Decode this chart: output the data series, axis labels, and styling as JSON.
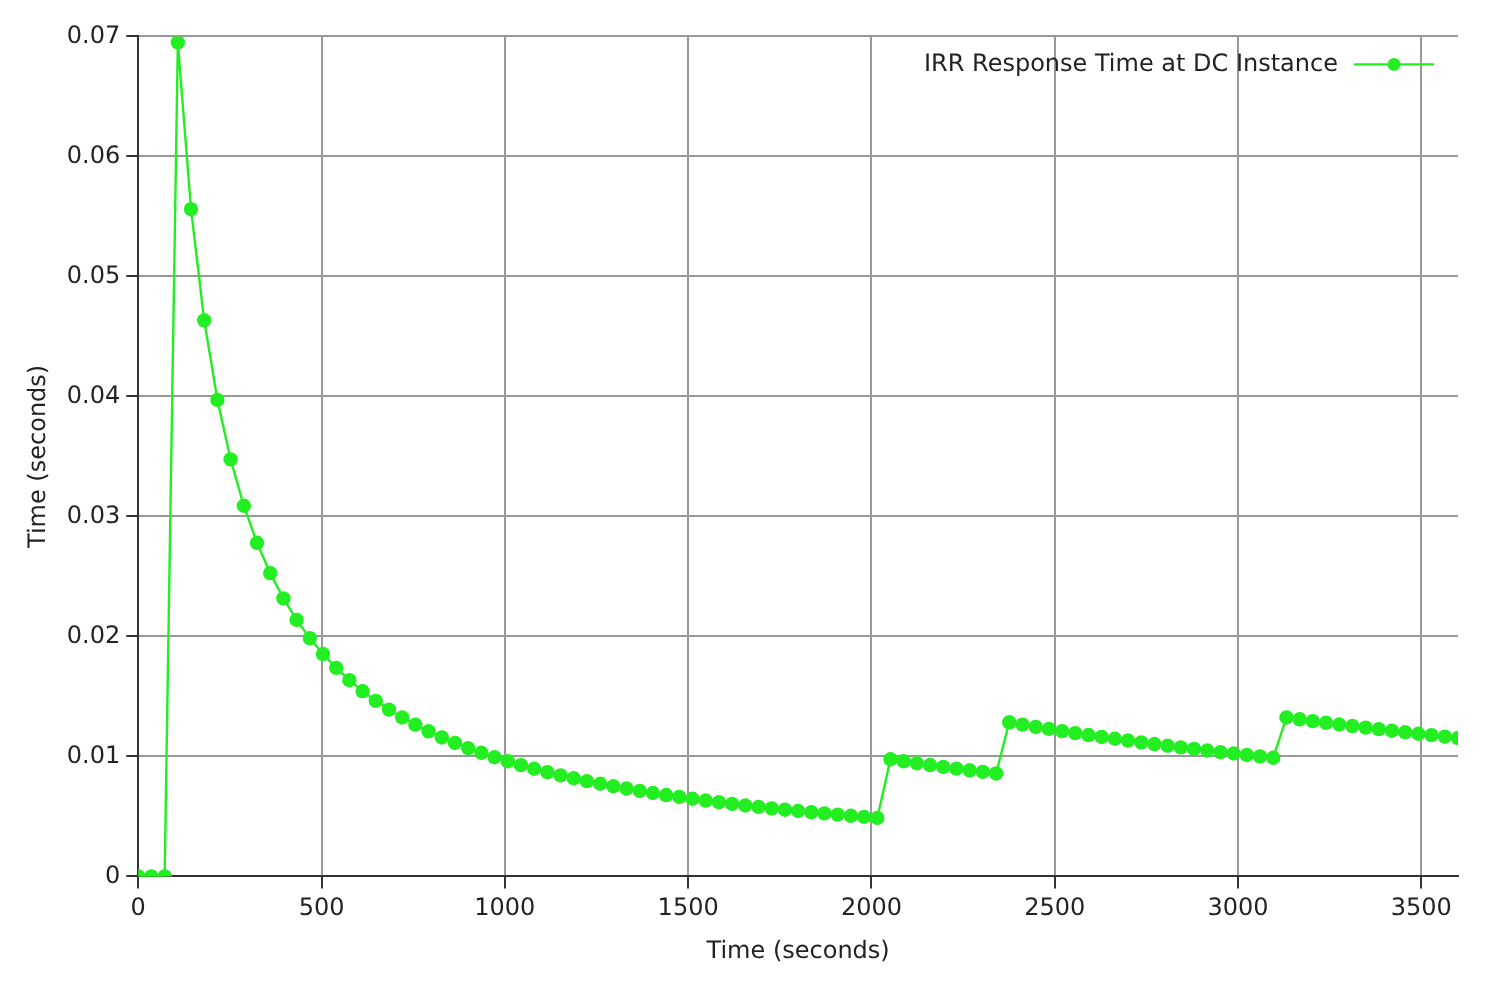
{
  "chart_data": {
    "type": "line",
    "xlabel": "Time (seconds)",
    "ylabel": "Time (seconds)",
    "x": [
      0,
      36,
      72,
      108,
      144,
      180,
      216,
      252,
      288,
      324,
      360,
      396,
      432,
      468,
      504,
      540,
      576,
      612,
      648,
      684,
      720,
      756,
      792,
      828,
      864,
      900,
      936,
      972,
      1008,
      1044,
      1080,
      1116,
      1152,
      1188,
      1224,
      1260,
      1296,
      1332,
      1368,
      1404,
      1440,
      1476,
      1512,
      1548,
      1584,
      1620,
      1656,
      1692,
      1728,
      1764,
      1800,
      1836,
      1872,
      1908,
      1944,
      1980,
      2016,
      2052,
      2088,
      2124,
      2160,
      2196,
      2232,
      2268,
      2304,
      2340,
      2376,
      2412,
      2448,
      2484,
      2520,
      2556,
      2592,
      2628,
      2664,
      2700,
      2736,
      2772,
      2808,
      2844,
      2880,
      2916,
      2952,
      2988,
      3024,
      3060,
      3096,
      3132,
      3168,
      3204,
      3240,
      3276,
      3312,
      3348,
      3384,
      3420,
      3456,
      3492,
      3528,
      3564,
      3600
    ],
    "series": [
      {
        "name": "IRR Response Time at DC Instance",
        "color": "#22ee22",
        "values": [
          0,
          0,
          0,
          0.0695,
          0.0556,
          0.04633,
          0.03971,
          0.03475,
          0.03089,
          0.0278,
          0.02527,
          0.02317,
          0.02138,
          0.01986,
          0.01853,
          0.01738,
          0.01635,
          0.01544,
          0.01463,
          0.0139,
          0.01324,
          0.01264,
          0.01209,
          0.01158,
          0.01112,
          0.01069,
          0.0103,
          0.00993,
          0.00959,
          0.00927,
          0.00897,
          0.00869,
          0.00842,
          0.00818,
          0.00794,
          0.00772,
          0.00751,
          0.00732,
          0.00713,
          0.00695,
          0.00678,
          0.00662,
          0.00647,
          0.00632,
          0.00618,
          0.00604,
          0.00591,
          0.00579,
          0.00567,
          0.00556,
          0.00545,
          0.00535,
          0.00525,
          0.00515,
          0.00505,
          0.00496,
          0.00488,
          0.00976,
          0.00959,
          0.00943,
          0.00928,
          0.00913,
          0.00898,
          0.00884,
          0.00871,
          0.00858,
          0.01284,
          0.01265,
          0.01246,
          0.01229,
          0.01211,
          0.01194,
          0.01178,
          0.01162,
          0.01147,
          0.01132,
          0.01117,
          0.01103,
          0.01089,
          0.01075,
          0.01062,
          0.01049,
          0.01036,
          0.01024,
          0.01012,
          0.01,
          0.00989,
          0.01324,
          0.01309,
          0.01294,
          0.0128,
          0.01266,
          0.01253,
          0.0124,
          0.01227,
          0.01214,
          0.01201,
          0.01189,
          0.01177,
          0.01165,
          0.01153
        ]
      }
    ],
    "xlim": [
      0,
      3600
    ],
    "xticks": [
      0,
      500,
      1000,
      1500,
      2000,
      2500,
      3000,
      3500
    ],
    "ylim": [
      0,
      0.07
    ],
    "yticks": [
      0,
      0.01,
      0.02,
      0.03,
      0.04,
      0.05,
      0.06,
      0.07
    ],
    "grid": true,
    "legend": "top right",
    "marker": "circle",
    "line_style": "solid"
  }
}
